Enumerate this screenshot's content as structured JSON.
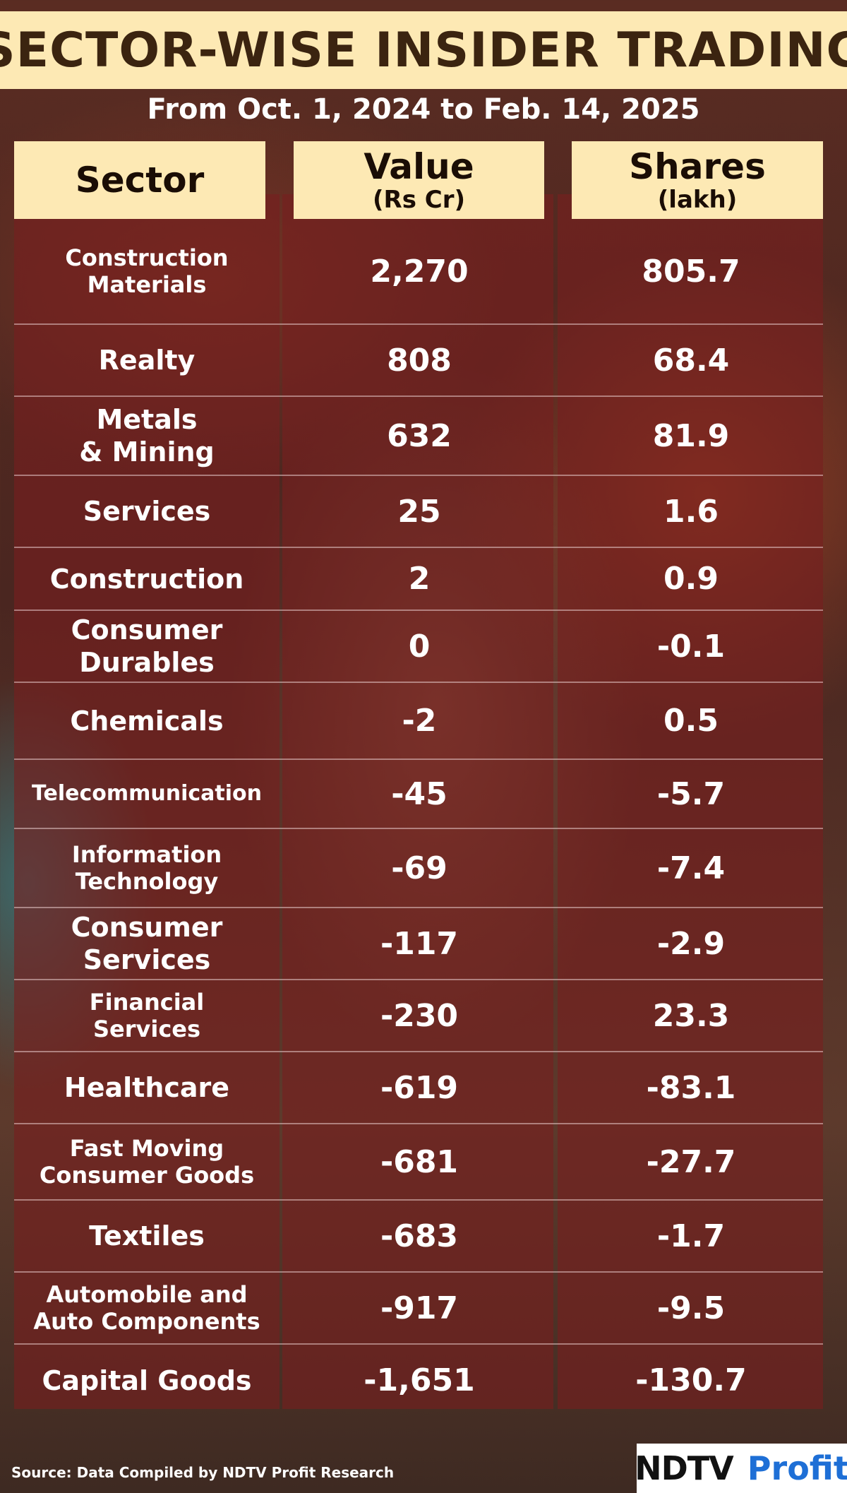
{
  "title": "SECTOR-WISE INSIDER TRADING",
  "subtitle": "From Oct. 1, 2024 to Feb. 14, 2025",
  "headers": {
    "sector": "Sector",
    "value": "Value",
    "value_unit": "(Rs Cr)",
    "shares": "Shares",
    "shares_unit": "(lakh)"
  },
  "rows": [
    {
      "sector": "Construction\nMaterials",
      "value": "2,270",
      "shares": "805.7"
    },
    {
      "sector": "Realty",
      "value": "808",
      "shares": "68.4"
    },
    {
      "sector": "Metals\n& Mining",
      "value": "632",
      "shares": "81.9"
    },
    {
      "sector": "Services",
      "value": "25",
      "shares": "1.6"
    },
    {
      "sector": "Construction",
      "value": "2",
      "shares": "0.9"
    },
    {
      "sector": "Consumer\nDurables",
      "value": "0",
      "shares": "-0.1"
    },
    {
      "sector": "Chemicals",
      "value": "-2",
      "shares": "0.5"
    },
    {
      "sector": "Telecommunication",
      "value": "-45",
      "shares": "-5.7"
    },
    {
      "sector": "Information\nTechnology",
      "value": "-69",
      "shares": "-7.4"
    },
    {
      "sector": "Consumer\nServices",
      "value": "-117",
      "shares": "-2.9"
    },
    {
      "sector": "Financial\nServices",
      "value": "-230",
      "shares": "23.3"
    },
    {
      "sector": "Healthcare",
      "value": "-619",
      "shares": "-83.1"
    },
    {
      "sector": "Fast Moving\nConsumer Goods",
      "value": "-681",
      "shares": "-27.7"
    },
    {
      "sector": "Textiles",
      "value": "-683",
      "shares": "-1.7"
    },
    {
      "sector": "Automobile and\nAuto Components",
      "value": "-917",
      "shares": "-9.5"
    },
    {
      "sector": "Capital Goods",
      "value": "-1,651",
      "shares": "-130.7"
    }
  ],
  "source": "Source: Data Compiled by NDTV Profit Research",
  "logo": {
    "left": "NDTV",
    "right": "Profit"
  },
  "chart_data": {
    "type": "table",
    "title": "SECTOR-WISE INSIDER TRADING",
    "subtitle": "From Oct. 1, 2024 to Feb. 14, 2025",
    "columns": [
      "Sector",
      "Value (Rs Cr)",
      "Shares (lakh)"
    ],
    "categories": [
      "Construction Materials",
      "Realty",
      "Metals & Mining",
      "Services",
      "Construction",
      "Consumer Durables",
      "Chemicals",
      "Telecommunication",
      "Information Technology",
      "Consumer Services",
      "Financial Services",
      "Healthcare",
      "Fast Moving Consumer Goods",
      "Textiles",
      "Automobile and Auto Components",
      "Capital Goods"
    ],
    "series": [
      {
        "name": "Value (Rs Cr)",
        "values": [
          2270,
          808,
          632,
          25,
          2,
          0,
          -2,
          -45,
          -69,
          -117,
          -230,
          -619,
          -681,
          -683,
          -917,
          -1651
        ]
      },
      {
        "name": "Shares (lakh)",
        "values": [
          805.7,
          68.4,
          81.9,
          1.6,
          0.9,
          -0.1,
          0.5,
          -5.7,
          -7.4,
          -2.9,
          23.3,
          -83.1,
          -27.7,
          -1.7,
          -9.5,
          -130.7
        ]
      }
    ]
  }
}
